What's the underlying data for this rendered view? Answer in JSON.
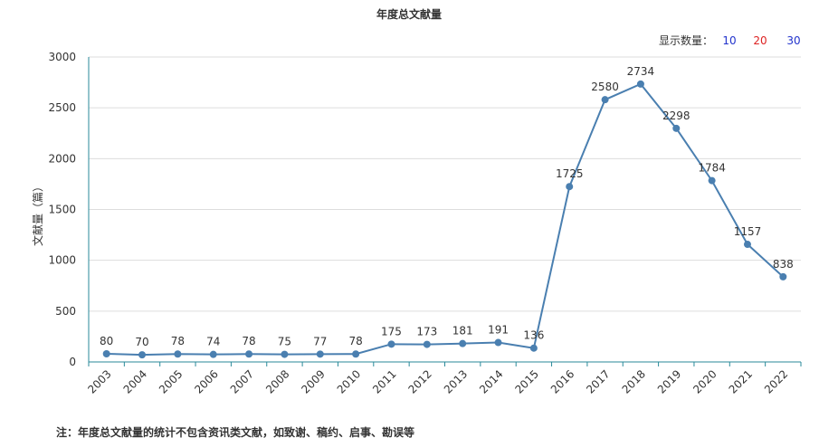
{
  "chart_data": {
    "type": "line",
    "title": "年度总文献量",
    "y_label": "文献量（篇）",
    "categories": [
      "2003",
      "2004",
      "2005",
      "2006",
      "2007",
      "2008",
      "2009",
      "2010",
      "2011",
      "2012",
      "2013",
      "2014",
      "2015",
      "2016",
      "2017",
      "2018",
      "2019",
      "2020",
      "2021",
      "2022"
    ],
    "values": [
      80,
      70,
      78,
      74,
      78,
      75,
      77,
      78,
      175,
      173,
      181,
      191,
      136,
      1725,
      2580,
      2734,
      2298,
      1784,
      1157,
      838
    ],
    "color": "#4a7fb0",
    "ylim": [
      0,
      3000
    ],
    "yticks": [
      0,
      500,
      1000,
      1500,
      2000,
      2500,
      3000
    ],
    "grid": true
  },
  "controls": {
    "label": "显示数量：",
    "options": [
      "10",
      "20",
      "30"
    ]
  },
  "footnote": "注：年度总文献量的统计不包含资讯类文献，如致谢、稿约、启事、勘误等"
}
